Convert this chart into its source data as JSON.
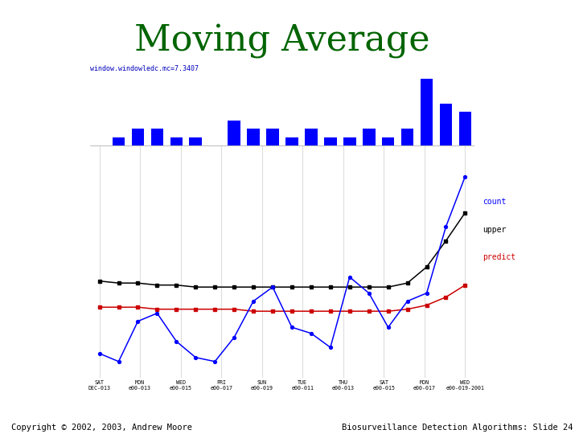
{
  "title": "Moving Average",
  "title_color": "#006400",
  "title_fontsize": 32,
  "subtitle": "window.windowledc.mc=7.3407",
  "subtitle_color": "#0000bb",
  "subtitle_fontsize": 6,
  "bar_values": [
    0,
    1,
    2,
    2,
    1,
    1,
    0,
    3,
    2,
    2,
    1,
    2,
    1,
    1,
    2,
    1,
    2,
    8,
    5,
    4
  ],
  "bar_color": "#0000ff",
  "count_y": [
    1.2,
    0.8,
    2.8,
    3.2,
    1.8,
    1.0,
    0.8,
    2.0,
    3.8,
    4.5,
    2.5,
    2.2,
    1.5,
    5.0,
    4.2,
    2.5,
    3.8,
    4.2,
    7.5,
    10.0
  ],
  "upper_y": [
    4.8,
    4.7,
    4.7,
    4.6,
    4.6,
    4.5,
    4.5,
    4.5,
    4.5,
    4.5,
    4.5,
    4.5,
    4.5,
    4.5,
    4.5,
    4.5,
    4.7,
    5.5,
    6.8,
    8.2
  ],
  "predict_y": [
    3.5,
    3.5,
    3.5,
    3.4,
    3.4,
    3.4,
    3.4,
    3.4,
    3.3,
    3.3,
    3.3,
    3.3,
    3.3,
    3.3,
    3.3,
    3.3,
    3.4,
    3.6,
    4.0,
    4.6
  ],
  "count_color": "#0000ff",
  "upper_color": "#000000",
  "predict_color": "#cc0000",
  "xtick_top": [
    "SAT",
    "MON",
    "WED",
    "FRI",
    "SUN",
    "TUE",
    "THU",
    "SAT",
    "MON",
    "WED"
  ],
  "xtick_bottom": [
    "DEC-013",
    "e00-013",
    "e00-015",
    "e00-017",
    "e00-019",
    "e00-011",
    "e00-013",
    "e00-015",
    "e00-017",
    "e00-019-2001"
  ],
  "legend_labels": [
    "count",
    "upper",
    "predict"
  ],
  "legend_colors": [
    "#0000ff",
    "#000000",
    "#cc0000"
  ],
  "copyright": "Copyright © 2002, 2003, Andrew Moore",
  "slide_text": "Biosurveillance Detection Algorithms: Slide 24",
  "bg_color": "#ffffff",
  "grid_color": "#dddddd"
}
